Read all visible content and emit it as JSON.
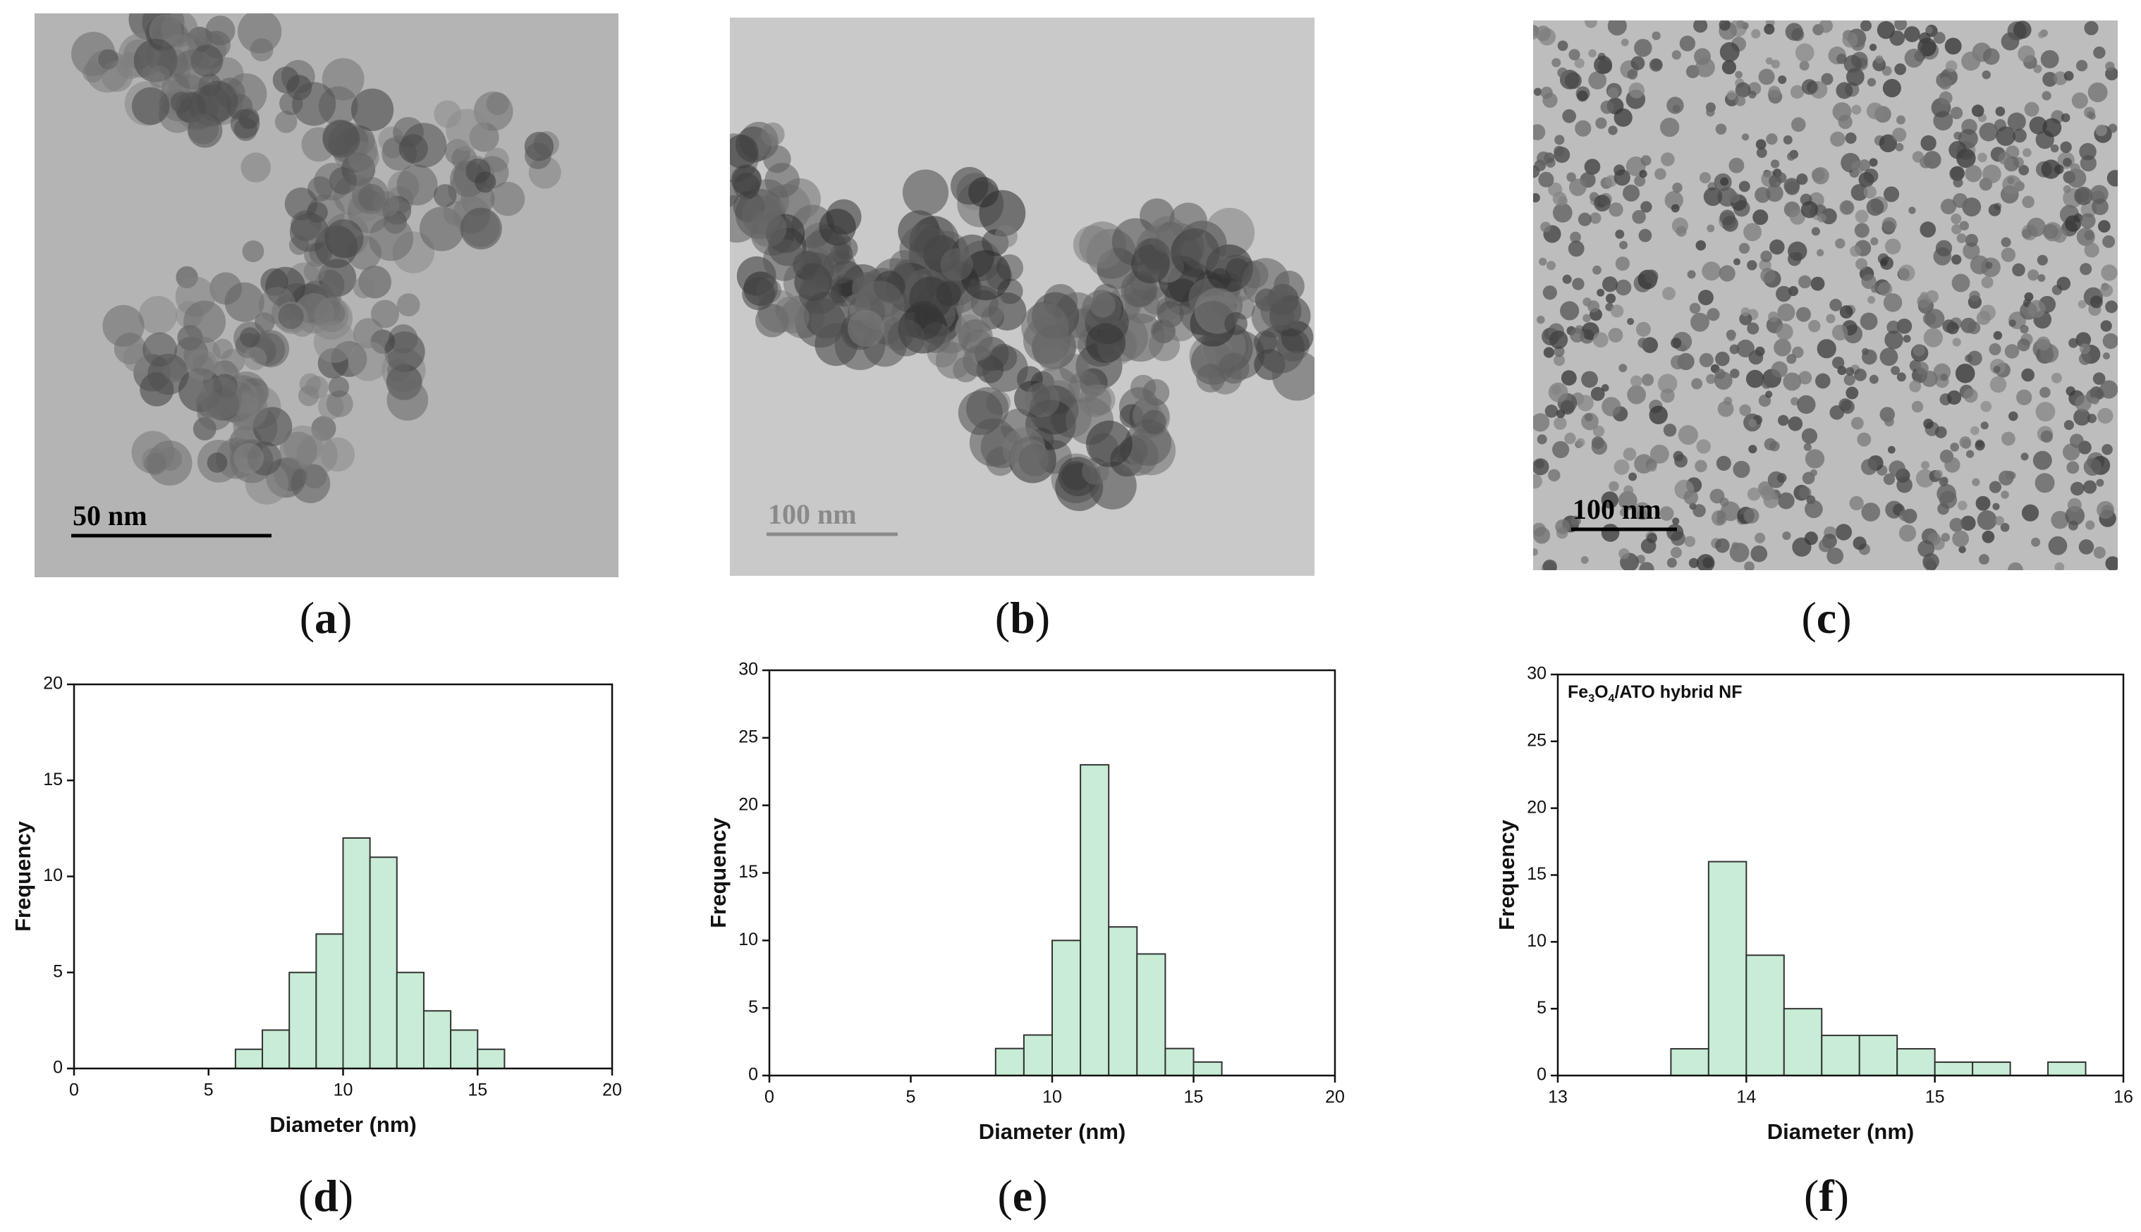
{
  "panels": [
    {
      "label": "(a)",
      "scale_bar": "50 nm"
    },
    {
      "label": "(b)",
      "scale_bar": "100 nm"
    },
    {
      "label": "(c)",
      "scale_bar": "100 nm"
    }
  ],
  "chart_data": [
    {
      "type": "histogram",
      "panel_label": "(d)",
      "xlabel": "Diameter (nm)",
      "ylabel": "Frequency",
      "bins": [
        6,
        7,
        8,
        9,
        10,
        11,
        12,
        13,
        14,
        15,
        16
      ],
      "values": [
        1,
        2,
        5,
        7,
        12,
        11,
        5,
        3,
        2,
        1
      ],
      "color": "#c8ecd6",
      "xlim": [
        0,
        20
      ],
      "xticks": [
        0,
        5,
        10,
        15,
        20
      ],
      "ylim": [
        0,
        20
      ],
      "yticks": [
        0,
        5,
        10,
        15,
        20
      ]
    },
    {
      "type": "histogram",
      "panel_label": "(e)",
      "xlabel": "Diameter (nm)",
      "ylabel": "Frequency",
      "bins": [
        8,
        9,
        10,
        11,
        12,
        13,
        14,
        15,
        16
      ],
      "values": [
        2,
        3,
        10,
        23,
        11,
        9,
        2,
        1
      ],
      "color": "#c8ecd6",
      "xlim": [
        0,
        20
      ],
      "xticks": [
        0,
        5,
        10,
        15,
        20
      ],
      "ylim": [
        0,
        30
      ],
      "yticks": [
        0,
        5,
        10,
        15,
        20,
        25,
        30
      ]
    },
    {
      "type": "histogram",
      "panel_label": "(f)",
      "xlabel": "Diameter (nm)",
      "ylabel": "Frequency",
      "annotation": "Fe3O4/ATO hybrid NF",
      "bins": [
        13.6,
        13.8,
        14.0,
        14.2,
        14.4,
        14.6,
        14.8,
        15.0,
        15.2,
        15.4,
        15.6,
        15.8
      ],
      "values": [
        2,
        16,
        9,
        5,
        3,
        3,
        2,
        1,
        1,
        0,
        1
      ],
      "color": "#c8ecd6",
      "xlim": [
        13,
        16
      ],
      "xticks": [
        13,
        14,
        15,
        16
      ],
      "ylim": [
        0,
        30
      ],
      "yticks": [
        0,
        5,
        10,
        15,
        20,
        25,
        30
      ]
    }
  ]
}
